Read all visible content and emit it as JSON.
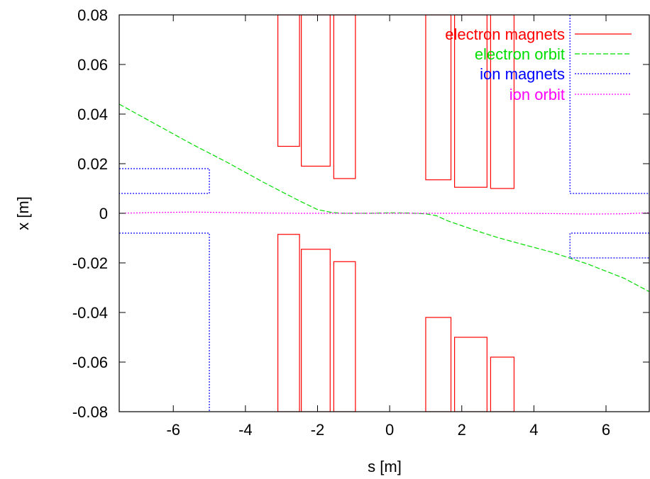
{
  "chart_data": {
    "type": "line",
    "title": "",
    "xlabel": "s [m]",
    "ylabel": "x [m]",
    "xlim": [
      -7.5,
      7.2
    ],
    "ylim": [
      -0.08,
      0.08
    ],
    "xticks": [
      "-6",
      "-4",
      "-2",
      "0",
      "2",
      "4",
      "6"
    ],
    "yticks": [
      "-0.08",
      "-0.06",
      "-0.04",
      "-0.02",
      "0",
      "0.02",
      "0.04",
      "0.06",
      "0.08"
    ],
    "grid": false,
    "legend_position": "top-right",
    "series": [
      {
        "name": "electron magnets",
        "color": "#ff0000",
        "dash": "solid",
        "rectangles": [
          {
            "s_min": -3.1,
            "s_max": -2.5,
            "x_min": 0.027,
            "x_max": 0.08
          },
          {
            "s_min": -2.45,
            "s_max": -1.65,
            "x_min": 0.019,
            "x_max": 0.08
          },
          {
            "s_min": -1.55,
            "s_max": -0.95,
            "x_min": 0.014,
            "x_max": 0.08
          },
          {
            "s_min": 1.0,
            "s_max": 1.7,
            "x_min": 0.0135,
            "x_max": 0.08
          },
          {
            "s_min": 1.8,
            "s_max": 2.7,
            "x_min": 0.0105,
            "x_max": 0.08
          },
          {
            "s_min": 2.8,
            "s_max": 3.45,
            "x_min": 0.01,
            "x_max": 0.08
          },
          {
            "s_min": -3.1,
            "s_max": -2.5,
            "x_min": -0.08,
            "x_max": -0.0085
          },
          {
            "s_min": -2.45,
            "s_max": -1.65,
            "x_min": -0.08,
            "x_max": -0.0145
          },
          {
            "s_min": -1.55,
            "s_max": -0.95,
            "x_min": -0.08,
            "x_max": -0.0195
          },
          {
            "s_min": 1.0,
            "s_max": 1.7,
            "x_min": -0.08,
            "x_max": -0.042
          },
          {
            "s_min": 1.8,
            "s_max": 2.7,
            "x_min": -0.08,
            "x_max": -0.05
          },
          {
            "s_min": 2.8,
            "s_max": 3.45,
            "x_min": -0.08,
            "x_max": -0.058
          }
        ]
      },
      {
        "name": "electron orbit",
        "color": "#00dd00",
        "dash": "dashed",
        "x": [
          -7.5,
          -6.5,
          -5.5,
          -4.5,
          -3.5,
          -2.5,
          -2.0,
          -1.6,
          -1.3,
          -1.0,
          -0.5,
          0.0,
          0.5,
          1.0,
          1.3,
          1.6,
          2.0,
          2.5,
          3.0,
          3.5,
          4.5,
          5.5,
          6.5,
          7.2
        ],
        "y": [
          0.044,
          0.036,
          0.028,
          0.0205,
          0.0125,
          0.005,
          0.0015,
          0.0003,
          0.0,
          0.0,
          0.0,
          0.0002,
          0.0001,
          -0.0002,
          -0.001,
          -0.003,
          -0.005,
          -0.0075,
          -0.0098,
          -0.0118,
          -0.0157,
          -0.0205,
          -0.0262,
          -0.0316
        ]
      },
      {
        "name": "ion magnets",
        "color": "#0000ff",
        "dash": "dotted",
        "polylines": [
          {
            "s": [
              -7.5,
              -5.0,
              -5.0,
              -7.5
            ],
            "x": [
              0.018,
              0.018,
              0.008,
              0.008
            ]
          },
          {
            "s": [
              -7.5,
              -5.0,
              -5.0
            ],
            "x": [
              -0.008,
              -0.008,
              -0.08
            ]
          },
          {
            "s": [
              5.0,
              5.0,
              7.2
            ],
            "x": [
              0.08,
              0.008,
              0.008
            ]
          },
          {
            "s": [
              7.2,
              5.0,
              5.0,
              7.2
            ],
            "x": [
              -0.008,
              -0.008,
              -0.018,
              -0.018
            ]
          }
        ]
      },
      {
        "name": "ion orbit",
        "color": "#ff00ff",
        "dash": "dotted",
        "x": [
          -7.5,
          -6.5,
          -5.5,
          -4.5,
          -3.5,
          -2.5,
          -1.5,
          -0.5,
          0.5,
          1.5,
          2.5,
          3.5,
          4.5,
          5.5,
          6.5,
          7.2
        ],
        "y": [
          0.0,
          0.0003,
          0.0005,
          0.0003,
          0.0001,
          0.0,
          0.0,
          0.0,
          0.0,
          0.0,
          0.0,
          0.0,
          -0.0001,
          -0.0003,
          -0.0002,
          0.0002
        ]
      }
    ]
  }
}
